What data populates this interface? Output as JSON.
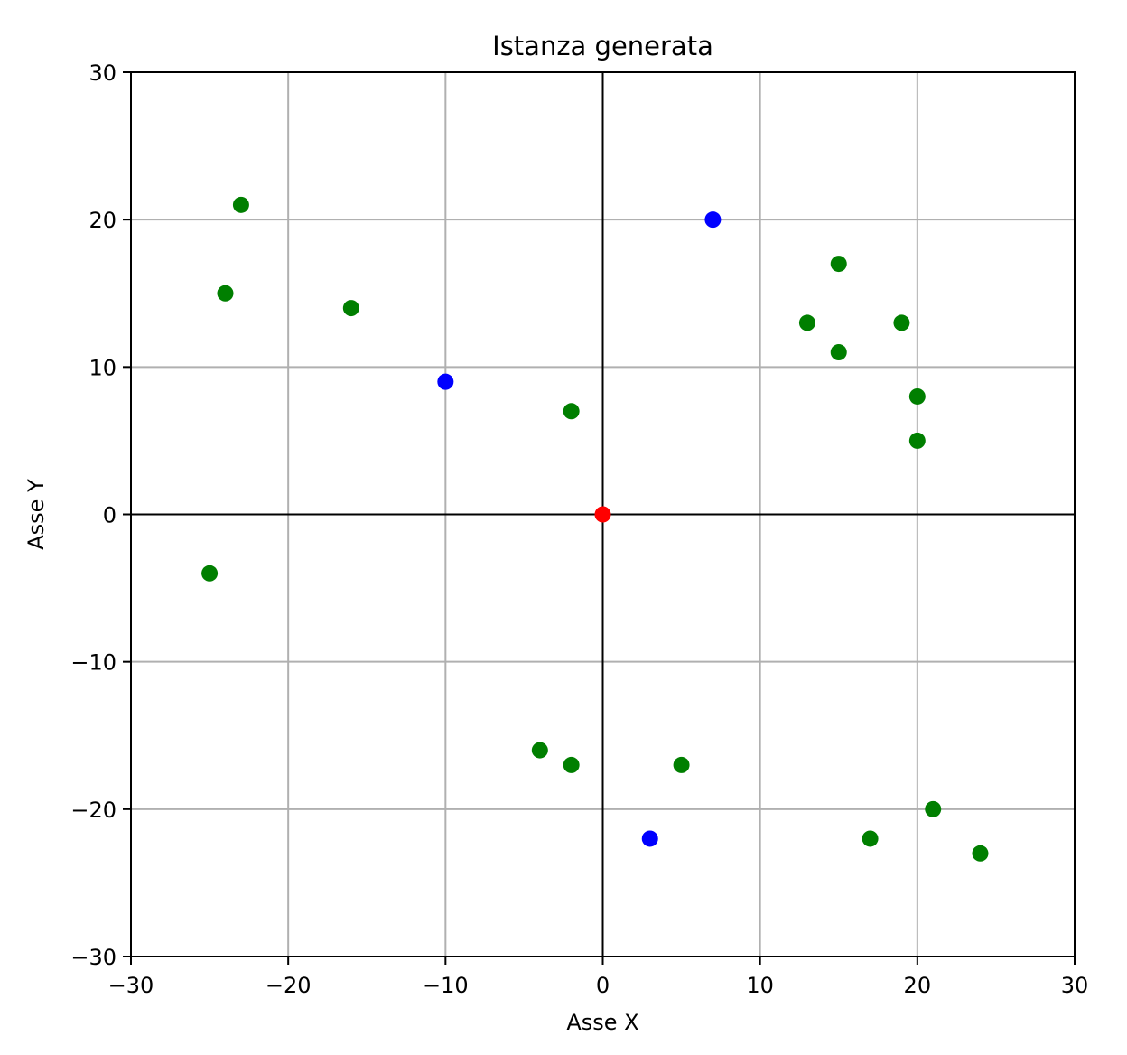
{
  "chart_data": {
    "type": "scatter",
    "title": "Istanza generata",
    "xlabel": "Asse X",
    "ylabel": "Asse Y",
    "xlim": [
      -30,
      30
    ],
    "ylim": [
      -30,
      30
    ],
    "xticks": [
      -30,
      -20,
      -10,
      0,
      10,
      20,
      30
    ],
    "yticks": [
      -30,
      -20,
      -10,
      0,
      10,
      20,
      30
    ],
    "xtick_labels": [
      "−30",
      "−20",
      "−10",
      "0",
      "10",
      "20",
      "30"
    ],
    "ytick_labels": [
      "−30",
      "−20",
      "−10",
      "0",
      "10",
      "20",
      "30"
    ],
    "grid": true,
    "origin_axes_lines": true,
    "series": [
      {
        "color": "#ff0000",
        "points": [
          [
            0,
            0
          ]
        ]
      },
      {
        "color": "#0000ff",
        "points": [
          [
            7,
            20
          ],
          [
            -10,
            9
          ],
          [
            3,
            -22
          ]
        ]
      },
      {
        "color": "#007f00",
        "points": [
          [
            -23,
            21
          ],
          [
            -24,
            15
          ],
          [
            -16,
            14
          ],
          [
            -2,
            7
          ],
          [
            -25,
            -4
          ],
          [
            15,
            17
          ],
          [
            13,
            13
          ],
          [
            19,
            13
          ],
          [
            15,
            11
          ],
          [
            20,
            8
          ],
          [
            20,
            5
          ],
          [
            -4,
            -16
          ],
          [
            -2,
            -17
          ],
          [
            5,
            -17
          ],
          [
            21,
            -20
          ],
          [
            17,
            -22
          ],
          [
            24,
            -23
          ]
        ]
      }
    ]
  }
}
